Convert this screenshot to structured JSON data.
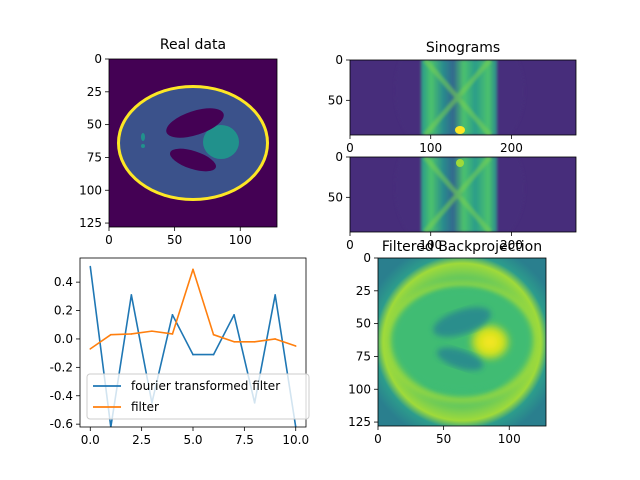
{
  "figure": {
    "panels": {
      "real": {
        "title": "Real data",
        "xticks": [
          "0",
          "50",
          "100"
        ],
        "yticks": [
          "0",
          "25",
          "50",
          "75",
          "100",
          "125"
        ]
      },
      "sino1": {
        "title": "Sinograms",
        "xticks": [
          "0",
          "100",
          "200"
        ],
        "yticks": [
          "0",
          "50"
        ]
      },
      "sino2": {
        "title": "",
        "xticks": [
          "0",
          "100",
          "200"
        ],
        "yticks": [
          "0",
          "50"
        ]
      },
      "fbp": {
        "title": "Filtered Backprojection",
        "xticks": [
          "0",
          "50",
          "100"
        ],
        "yticks": [
          "0",
          "25",
          "50",
          "75",
          "100",
          "125"
        ]
      }
    },
    "colors": {
      "background_dark": "#440154",
      "phantom_outer": "#3b528b",
      "phantom_ring": "#fde725",
      "phantom_dark_ellipse": "#440154",
      "phantom_bright_blob": "#21918c",
      "series_1": "#1f77b4",
      "series_2": "#ff7f0e"
    }
  },
  "chart_data": {
    "type": "line",
    "title": "",
    "xlabel": "",
    "ylabel": "",
    "x": [
      0,
      1,
      2,
      3,
      4,
      5,
      6,
      7,
      8,
      9,
      10
    ],
    "xlim": [
      -0.5,
      10.5
    ],
    "ylim": [
      -0.62,
      0.57
    ],
    "xticks": [
      "0.0",
      "2.5",
      "5.0",
      "7.5",
      "10.0"
    ],
    "xtick_values": [
      0,
      2.5,
      5,
      7.5,
      10
    ],
    "yticks": [
      "0.4",
      "0.2",
      "0.0",
      "-0.2",
      "-0.4",
      "-0.6"
    ],
    "ytick_values": [
      0.4,
      0.2,
      0.0,
      -0.2,
      -0.4,
      -0.6
    ],
    "legend": "lower-left",
    "grid": false,
    "series": [
      {
        "name": "fourier transformed filter",
        "values": [
          0.51,
          -0.62,
          0.31,
          -0.45,
          0.17,
          -0.11,
          -0.11,
          0.17,
          -0.45,
          0.31,
          -0.62
        ]
      },
      {
        "name": "filter",
        "values": [
          -0.07,
          0.03,
          0.035,
          0.055,
          0.035,
          0.49,
          0.03,
          -0.02,
          -0.02,
          0.0,
          -0.05
        ]
      }
    ]
  }
}
